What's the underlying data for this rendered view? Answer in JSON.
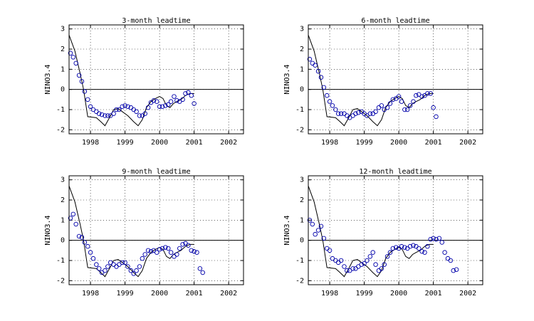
{
  "chart_data": [
    {
      "type": "scatter",
      "title": "3-month leadtime",
      "ylabel": "NINO3.4",
      "xlim": [
        1997.38,
        2002.43
      ],
      "ylim": [
        -2.2,
        3.2
      ],
      "xticks": [
        1998,
        1999,
        2000,
        2001,
        2002
      ],
      "yticks": [
        -2,
        -1,
        0,
        1,
        2,
        3
      ],
      "grid": true,
      "series": [
        {
          "type": "line",
          "color": "#000000",
          "x": [
            1997.38,
            1997.55,
            1997.7,
            1997.8,
            1997.92,
            1998.17,
            1998.3,
            1998.42,
            1998.55,
            1998.67,
            1998.8,
            1998.92,
            1999.08,
            1999.25,
            1999.38,
            1999.5,
            1999.62,
            1999.75,
            1999.88,
            2000.0,
            2000.1,
            2000.2,
            2000.3,
            2000.4,
            2000.5,
            2000.62,
            2000.75,
            2000.88,
            2001.0
          ],
          "values": [
            2.7,
            1.9,
            0.8,
            0,
            -1.35,
            -1.4,
            -1.6,
            -1.8,
            -1.4,
            -1.0,
            -0.95,
            -1.1,
            -1.3,
            -1.6,
            -1.8,
            -1.5,
            -0.9,
            -0.6,
            -0.45,
            -0.35,
            -0.45,
            -0.8,
            -0.9,
            -0.7,
            -0.6,
            -0.5,
            -0.3,
            -0.2,
            -0.2
          ]
        },
        {
          "type": "scatter",
          "color": "#0000aa",
          "x": [
            1997.42,
            1997.5,
            1997.58,
            1997.67,
            1997.75,
            1997.83,
            1997.92,
            1998.0,
            1998.08,
            1998.17,
            1998.25,
            1998.33,
            1998.42,
            1998.5,
            1998.58,
            1998.67,
            1998.75,
            1998.83,
            1998.92,
            1999.0,
            1999.08,
            1999.17,
            1999.25,
            1999.33,
            1999.42,
            1999.5,
            1999.58,
            1999.67,
            1999.75,
            1999.83,
            1999.92,
            2000.0,
            2000.08,
            2000.17,
            2000.25,
            2000.33,
            2000.42,
            2000.5,
            2000.58,
            2000.67,
            2000.75,
            2000.83,
            2000.92,
            2001.0
          ],
          "values": [
            1.8,
            1.6,
            1.3,
            0.7,
            0.4,
            -0.1,
            -0.5,
            -0.85,
            -1.0,
            -1.1,
            -1.2,
            -1.25,
            -1.3,
            -1.3,
            -1.3,
            -1.2,
            -1.0,
            -1.0,
            -0.85,
            -0.8,
            -0.85,
            -0.9,
            -1.0,
            -1.1,
            -1.3,
            -1.3,
            -1.2,
            -0.9,
            -0.65,
            -0.55,
            -0.6,
            -0.85,
            -0.85,
            -0.8,
            -0.75,
            -0.6,
            -0.35,
            -0.55,
            -0.6,
            -0.5,
            -0.2,
            -0.15,
            -0.3,
            -0.7
          ]
        }
      ]
    },
    {
      "type": "scatter",
      "title": "6-month leadtime",
      "ylabel": "NINO3.4",
      "xlim": [
        1997.38,
        2002.43
      ],
      "ylim": [
        -2.2,
        3.2
      ],
      "xticks": [
        1998,
        1999,
        2000,
        2001,
        2002
      ],
      "yticks": [
        -2,
        -1,
        0,
        1,
        2,
        3
      ],
      "grid": true,
      "series": [
        {
          "type": "line",
          "color": "#000000",
          "x": [
            1997.38,
            1997.55,
            1997.7,
            1997.8,
            1997.92,
            1998.17,
            1998.3,
            1998.42,
            1998.55,
            1998.67,
            1998.8,
            1998.92,
            1999.08,
            1999.25,
            1999.38,
            1999.5,
            1999.62,
            1999.75,
            1999.88,
            2000.0,
            2000.1,
            2000.2,
            2000.3,
            2000.4,
            2000.5,
            2000.62,
            2000.75,
            2000.88,
            2001.0
          ],
          "values": [
            2.7,
            1.9,
            0.8,
            0,
            -1.35,
            -1.4,
            -1.6,
            -1.8,
            -1.4,
            -1.0,
            -0.95,
            -1.1,
            -1.3,
            -1.6,
            -1.8,
            -1.5,
            -0.9,
            -0.6,
            -0.45,
            -0.35,
            -0.45,
            -0.8,
            -0.9,
            -0.7,
            -0.6,
            -0.5,
            -0.3,
            -0.2,
            -0.2
          ]
        },
        {
          "type": "scatter",
          "color": "#0000aa",
          "x": [
            1997.42,
            1997.5,
            1997.58,
            1997.67,
            1997.75,
            1997.83,
            1997.92,
            1998.0,
            1998.08,
            1998.17,
            1998.25,
            1998.33,
            1998.42,
            1998.5,
            1998.58,
            1998.67,
            1998.75,
            1998.83,
            1998.92,
            1999.0,
            1999.08,
            1999.17,
            1999.25,
            1999.33,
            1999.42,
            1999.5,
            1999.58,
            1999.67,
            1999.75,
            1999.83,
            1999.92,
            2000.0,
            2000.08,
            2000.17,
            2000.25,
            2000.33,
            2000.42,
            2000.5,
            2000.58,
            2000.67,
            2000.75,
            2000.83,
            2000.92,
            2001.0,
            2001.08
          ],
          "values": [
            1.5,
            1.3,
            1.2,
            0.9,
            0.6,
            0.1,
            -0.3,
            -0.6,
            -0.8,
            -1.0,
            -1.2,
            -1.2,
            -1.2,
            -1.3,
            -1.4,
            -1.3,
            -1.2,
            -1.15,
            -1.1,
            -1.2,
            -1.3,
            -1.2,
            -1.2,
            -1.1,
            -0.9,
            -0.8,
            -1.0,
            -0.9,
            -0.7,
            -0.5,
            -0.45,
            -0.35,
            -0.6,
            -1.0,
            -1.0,
            -0.8,
            -0.6,
            -0.3,
            -0.25,
            -0.35,
            -0.3,
            -0.2,
            -0.2,
            -0.9,
            -1.35
          ]
        }
      ]
    },
    {
      "type": "scatter",
      "title": "9-month leadtime",
      "ylabel": "NINO3.4",
      "xlim": [
        1997.38,
        2002.43
      ],
      "ylim": [
        -2.2,
        3.2
      ],
      "xticks": [
        1998,
        1999,
        2000,
        2001,
        2002
      ],
      "yticks": [
        -2,
        -1,
        0,
        1,
        2,
        3
      ],
      "grid": true,
      "series": [
        {
          "type": "line",
          "color": "#000000",
          "x": [
            1997.38,
            1997.55,
            1997.7,
            1997.8,
            1997.92,
            1998.17,
            1998.3,
            1998.42,
            1998.55,
            1998.67,
            1998.8,
            1998.92,
            1999.08,
            1999.25,
            1999.38,
            1999.5,
            1999.62,
            1999.75,
            1999.88,
            2000.0,
            2000.1,
            2000.2,
            2000.3,
            2000.4,
            2000.5,
            2000.62,
            2000.75,
            2000.88,
            2001.0
          ],
          "values": [
            2.7,
            1.9,
            0.8,
            0,
            -1.35,
            -1.4,
            -1.6,
            -1.8,
            -1.4,
            -1.0,
            -0.95,
            -1.1,
            -1.3,
            -1.6,
            -1.8,
            -1.5,
            -0.9,
            -0.6,
            -0.45,
            -0.35,
            -0.45,
            -0.8,
            -0.9,
            -0.7,
            -0.6,
            -0.5,
            -0.3,
            -0.2,
            -0.2
          ]
        },
        {
          "type": "scatter",
          "color": "#0000aa",
          "x": [
            1997.42,
            1997.5,
            1997.58,
            1997.67,
            1997.75,
            1997.83,
            1997.92,
            1998.0,
            1998.08,
            1998.17,
            1998.25,
            1998.33,
            1998.42,
            1998.5,
            1998.58,
            1998.67,
            1998.75,
            1998.83,
            1998.92,
            1999.0,
            1999.08,
            1999.17,
            1999.25,
            1999.33,
            1999.42,
            1999.5,
            1999.58,
            1999.67,
            1999.75,
            1999.83,
            1999.92,
            2000.0,
            2000.08,
            2000.17,
            2000.25,
            2000.33,
            2000.42,
            2000.5,
            2000.58,
            2000.67,
            2000.75,
            2000.83,
            2000.92,
            2001.0,
            2001.08,
            2001.17,
            2001.25
          ],
          "values": [
            1.1,
            1.3,
            0.8,
            0.2,
            0.15,
            -0.1,
            -0.3,
            -0.6,
            -0.9,
            -1.2,
            -1.4,
            -1.6,
            -1.5,
            -1.3,
            -1.1,
            -1.2,
            -1.3,
            -1.2,
            -1.1,
            -1.1,
            -1.3,
            -1.5,
            -1.65,
            -1.5,
            -1.3,
            -0.9,
            -0.7,
            -0.5,
            -0.55,
            -0.5,
            -0.6,
            -0.45,
            -0.4,
            -0.35,
            -0.4,
            -0.6,
            -0.8,
            -0.7,
            -0.4,
            -0.2,
            -0.15,
            -0.25,
            -0.5,
            -0.55,
            -0.6,
            -1.4,
            -1.6
          ]
        }
      ]
    },
    {
      "type": "scatter",
      "title": "12-month leadtime",
      "ylabel": "NINO3.4",
      "xlim": [
        1997.38,
        2002.43
      ],
      "ylim": [
        -2.2,
        3.2
      ],
      "xticks": [
        1998,
        1999,
        2000,
        2001,
        2002
      ],
      "yticks": [
        -2,
        -1,
        0,
        1,
        2,
        3
      ],
      "grid": true,
      "series": [
        {
          "type": "line",
          "color": "#000000",
          "x": [
            1997.38,
            1997.55,
            1997.7,
            1997.8,
            1997.92,
            1998.17,
            1998.3,
            1998.42,
            1998.55,
            1998.67,
            1998.8,
            1998.92,
            1999.08,
            1999.25,
            1999.38,
            1999.5,
            1999.62,
            1999.75,
            1999.88,
            2000.0,
            2000.1,
            2000.2,
            2000.3,
            2000.4,
            2000.5,
            2000.62,
            2000.75,
            2000.88,
            2001.0
          ],
          "values": [
            2.7,
            1.9,
            0.8,
            0,
            -1.35,
            -1.4,
            -1.6,
            -1.8,
            -1.4,
            -1.0,
            -0.95,
            -1.1,
            -1.3,
            -1.6,
            -1.8,
            -1.5,
            -0.9,
            -0.6,
            -0.45,
            -0.35,
            -0.45,
            -0.8,
            -0.9,
            -0.7,
            -0.6,
            -0.5,
            -0.3,
            -0.2,
            -0.2
          ]
        },
        {
          "type": "scatter",
          "color": "#0000aa",
          "x": [
            1997.42,
            1997.5,
            1997.58,
            1997.67,
            1997.75,
            1997.83,
            1997.92,
            1998.0,
            1998.08,
            1998.17,
            1998.25,
            1998.33,
            1998.42,
            1998.5,
            1998.58,
            1998.67,
            1998.75,
            1998.83,
            1998.92,
            1999.0,
            1999.08,
            1999.17,
            1999.25,
            1999.33,
            1999.42,
            1999.5,
            1999.58,
            1999.67,
            1999.75,
            1999.83,
            1999.92,
            2000.0,
            2000.08,
            2000.17,
            2000.25,
            2000.33,
            2000.42,
            2000.5,
            2000.58,
            2000.67,
            2000.75,
            2000.83,
            2000.92,
            2001.0,
            2001.08,
            2001.17,
            2001.25,
            2001.33,
            2001.42,
            2001.5,
            2001.58,
            2001.67
          ],
          "values": [
            1.0,
            0.8,
            0.3,
            0.5,
            0.7,
            0.1,
            -0.4,
            -0.5,
            -0.9,
            -1.0,
            -1.1,
            -1.0,
            -1.3,
            -1.5,
            -1.5,
            -1.4,
            -1.4,
            -1.3,
            -1.2,
            -1.15,
            -1.0,
            -0.8,
            -0.6,
            -1.2,
            -1.5,
            -1.4,
            -1.2,
            -0.8,
            -0.6,
            -0.4,
            -0.35,
            -0.4,
            -0.3,
            -0.35,
            -0.4,
            -0.3,
            -0.25,
            -0.3,
            -0.4,
            -0.55,
            -0.6,
            -0.3,
            0.05,
            0.1,
            0.05,
            0.1,
            -0.1,
            -0.6,
            -0.9,
            -1.0,
            -1.5,
            -1.45
          ]
        }
      ]
    }
  ]
}
